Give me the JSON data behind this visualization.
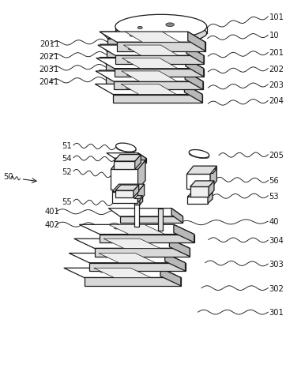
{
  "bg_color": "#ffffff",
  "line_color": "#1a1a1a",
  "lw": 0.9,
  "fig_width": 3.81,
  "fig_height": 4.71,
  "dpi": 100
}
